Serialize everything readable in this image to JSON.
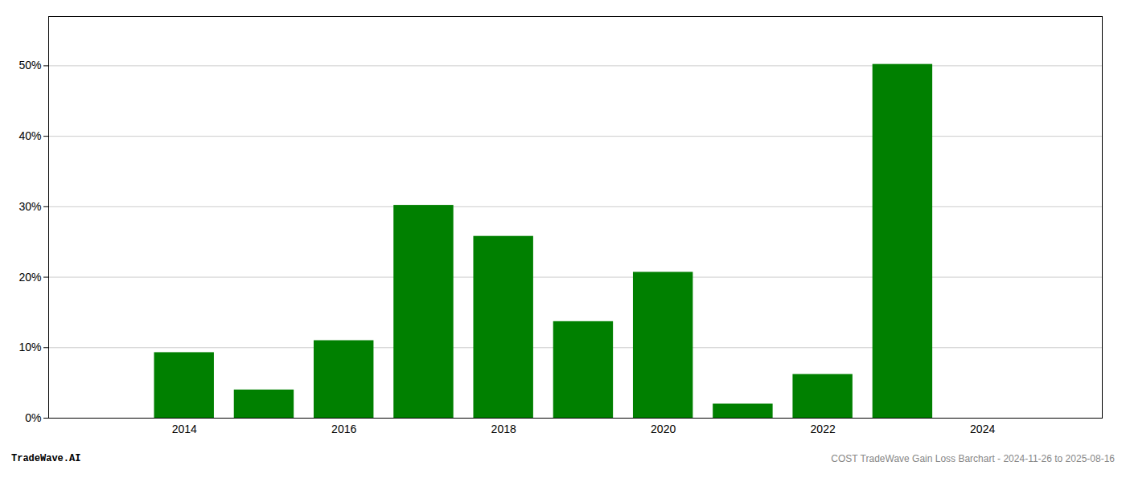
{
  "chart_data": {
    "type": "bar",
    "x": [
      2013,
      2014,
      2015,
      2016,
      2017,
      2018,
      2019,
      2020,
      2021,
      2022,
      2023,
      2024
    ],
    "values": [
      0.0,
      9.3,
      4.0,
      11.0,
      30.2,
      25.8,
      13.7,
      20.7,
      2.0,
      6.2,
      50.2,
      0.0
    ],
    "color": "#008000",
    "xlim": [
      2012.3,
      2025.5
    ],
    "xticks": [
      2014,
      2016,
      2018,
      2020,
      2022,
      2024
    ],
    "ylim": [
      0,
      57
    ],
    "yticks": [
      {
        "value": 0,
        "label": "0%"
      },
      {
        "value": 10,
        "label": "10%"
      },
      {
        "value": 20,
        "label": "20%"
      },
      {
        "value": 30,
        "label": "30%"
      },
      {
        "value": 40,
        "label": "40%"
      },
      {
        "value": 50,
        "label": "50%"
      }
    ],
    "grid": true,
    "annotations": [
      "TradeWave.AI",
      "COST TradeWave Gain Loss Barchart - 2024-11-26 to 2025-08-16"
    ]
  }
}
